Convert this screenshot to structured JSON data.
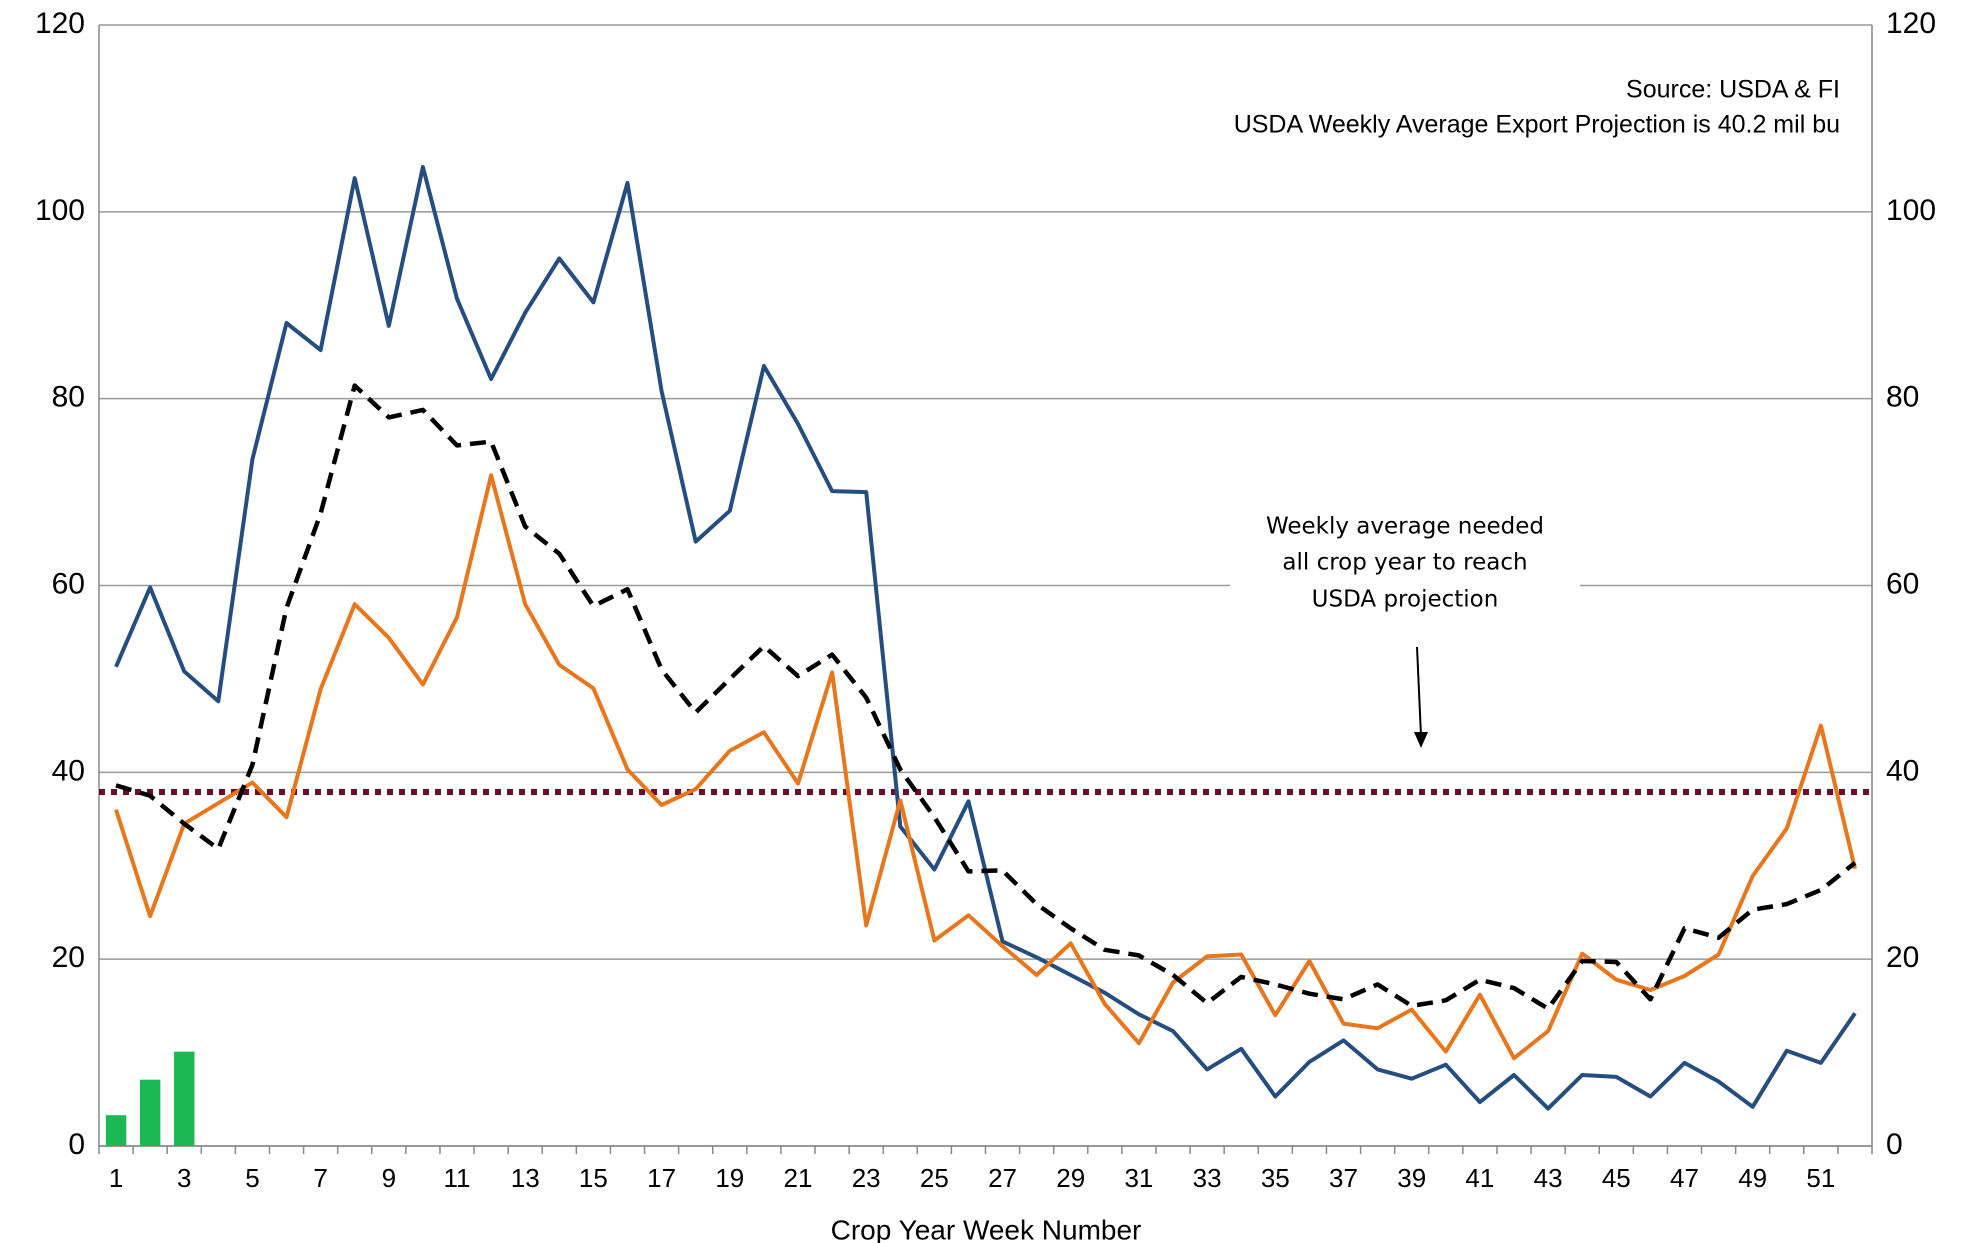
{
  "chart_data": {
    "type": "line",
    "source": "Source: USDA & FI",
    "note": "USDA Weekly Average Export Projection is 40.2 mil bu",
    "annotation": [
      "Weekly average needed",
      "all crop year to reach",
      "USDA projection"
    ],
    "x_label": "Crop Year Week Number",
    "categories": [
      1,
      null,
      3,
      null,
      5,
      null,
      7,
      null,
      9,
      null,
      11,
      null,
      13,
      null,
      15,
      null,
      17,
      null,
      19,
      null,
      21,
      null,
      23,
      null,
      25,
      null,
      27,
      null,
      29,
      null,
      31,
      null,
      33,
      null,
      35,
      null,
      37,
      null,
      39,
      null,
      41,
      null,
      43,
      null,
      45,
      null,
      47,
      null,
      49,
      null,
      51,
      null
    ],
    "ylim": [
      0,
      120
    ],
    "yticks": [
      0,
      20,
      40,
      60,
      80,
      100,
      120
    ],
    "y2lim": [
      0,
      120
    ],
    "y2ticks": [
      0,
      20,
      40,
      60,
      80,
      100,
      120
    ],
    "grid": true,
    "hline": {
      "value": 37.9,
      "color": "#6b0d2a",
      "style": "dotted"
    },
    "series": [
      {
        "kind": "bar",
        "color": "#1db954",
        "values": [
          3.3,
          7.1,
          10.1,
          null,
          null,
          null,
          null,
          null,
          null,
          null,
          null,
          null,
          null,
          null,
          null,
          null,
          null,
          null,
          null,
          null,
          null,
          null,
          null,
          null,
          null,
          null,
          null,
          null,
          null,
          null,
          null,
          null,
          null,
          null,
          null,
          null,
          null,
          null,
          null,
          null,
          null,
          null,
          null,
          null,
          null,
          null,
          null,
          null,
          null,
          null,
          null,
          null
        ]
      },
      {
        "kind": "line",
        "style": "solid",
        "color": "#254e80",
        "values": [
          51.3,
          59.8,
          50.8,
          47.6,
          73.5,
          88.1,
          85.2,
          103.6,
          87.8,
          104.8,
          90.7,
          82.1,
          89.2,
          95.0,
          90.3,
          103.1,
          80.8,
          64.7,
          68.0,
          83.5,
          77.3,
          70.1,
          70.0,
          34.2,
          29.6,
          36.9,
          21.9,
          20.2,
          18.3,
          16.4,
          14.1,
          12.3,
          8.2,
          10.4,
          5.3,
          9.0,
          11.3,
          8.2,
          7.2,
          8.7,
          4.7,
          7.6,
          4.0,
          7.6,
          7.4,
          5.3,
          8.9,
          6.9,
          4.2,
          10.2,
          8.9,
          14.2
        ]
      },
      {
        "kind": "line",
        "style": "solid",
        "color": "#e8761d",
        "values": [
          36.0,
          24.6,
          34.5,
          36.7,
          38.9,
          35.2,
          48.9,
          58.0,
          54.4,
          49.4,
          56.6,
          71.8,
          58.0,
          51.5,
          49.0,
          40.3,
          36.5,
          38.2,
          42.3,
          44.3,
          38.8,
          50.7,
          23.6,
          37.0,
          22.0,
          24.7,
          21.4,
          18.3,
          21.7,
          15.2,
          11.0,
          17.5,
          20.3,
          20.5,
          14.0,
          19.8,
          13.1,
          12.6,
          14.6,
          10.1,
          16.2,
          9.4,
          12.3,
          20.6,
          17.8,
          16.7,
          18.2,
          20.5,
          28.9,
          34.0,
          45.0,
          29.7
        ]
      },
      {
        "kind": "line",
        "style": "dashed",
        "color": "#000000",
        "values": [
          38.6,
          37.5,
          34.5,
          31.8,
          40.8,
          57.6,
          67.7,
          81.4,
          78.0,
          78.8,
          75.0,
          75.4,
          66.3,
          63.4,
          57.8,
          59.6,
          51.0,
          46.4,
          50.0,
          53.5,
          50.3,
          52.6,
          48.0,
          40.3,
          35.2,
          29.4,
          29.5,
          25.9,
          23.3,
          21.0,
          20.4,
          18.3,
          15.3,
          18.1,
          17.3,
          16.3,
          15.7,
          17.3,
          15.0,
          15.6,
          17.8,
          16.9,
          14.7,
          19.8,
          19.7,
          15.7,
          23.3,
          22.3,
          25.3,
          25.9,
          27.4,
          30.3
        ]
      }
    ]
  }
}
